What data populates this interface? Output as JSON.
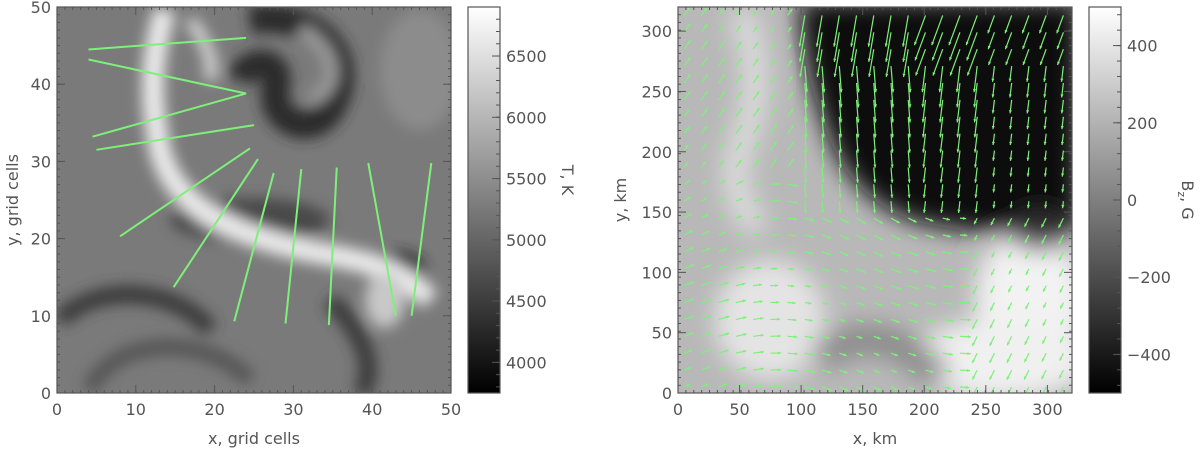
{
  "chart_data": [
    {
      "type": "heatmap",
      "title": "",
      "xlabel": "x, grid cells",
      "ylabel": "y, grid cells",
      "xlim": [
        0,
        50
      ],
      "ylim": [
        0,
        50
      ],
      "x_ticks": [
        0,
        10,
        20,
        30,
        40,
        50
      ],
      "y_ticks": [
        0,
        10,
        20,
        30,
        40,
        50
      ],
      "colormap": "grayscale",
      "colorbar": {
        "label": "T, K",
        "range": [
          3750,
          6900
        ],
        "ticks": [
          4000,
          4500,
          5000,
          5500,
          6000,
          6500
        ]
      },
      "overlay_lines": [
        {
          "x1": 4,
          "y1": 44.5,
          "x2": 24,
          "y2": 46
        },
        {
          "x1": 4,
          "y1": 43.2,
          "x2": 24,
          "y2": 38.8
        },
        {
          "x1": 4.5,
          "y1": 33.2,
          "x2": 24,
          "y2": 38.8
        },
        {
          "x1": 5,
          "y1": 31.5,
          "x2": 25,
          "y2": 34.7
        },
        {
          "x1": 8,
          "y1": 20.3,
          "x2": 24.5,
          "y2": 31.7
        },
        {
          "x1": 14.8,
          "y1": 13.7,
          "x2": 25.5,
          "y2": 30.3
        },
        {
          "x1": 22.5,
          "y1": 9.3,
          "x2": 27.5,
          "y2": 28.5
        },
        {
          "x1": 29,
          "y1": 9,
          "x2": 31,
          "y2": 29
        },
        {
          "x1": 34.5,
          "y1": 8.8,
          "x2": 35.5,
          "y2": 29.2
        },
        {
          "x1": 43,
          "y1": 10,
          "x2": 39.5,
          "y2": 29.8
        },
        {
          "x1": 45,
          "y1": 10,
          "x2": 47.5,
          "y2": 29.8
        }
      ],
      "overlay_color": "#7ef07a"
    },
    {
      "type": "heatmap",
      "title": "",
      "xlabel": "x, km",
      "ylabel": "y, km",
      "xlim": [
        0,
        320
      ],
      "ylim": [
        0,
        320
      ],
      "x_ticks": [
        0,
        50,
        100,
        150,
        200,
        250,
        300
      ],
      "y_ticks": [
        0,
        50,
        100,
        150,
        200,
        250,
        300
      ],
      "colormap": "grayscale",
      "colorbar": {
        "label": "B",
        "label_subscript": "z",
        "label_suffix": ", G",
        "range": [
          -500,
          500
        ],
        "ticks": [
          -400,
          -200,
          0,
          200,
          400
        ]
      },
      "vector_field": {
        "color": "#7ef07a",
        "description_note": "horizontal velocity arrows"
      }
    }
  ]
}
